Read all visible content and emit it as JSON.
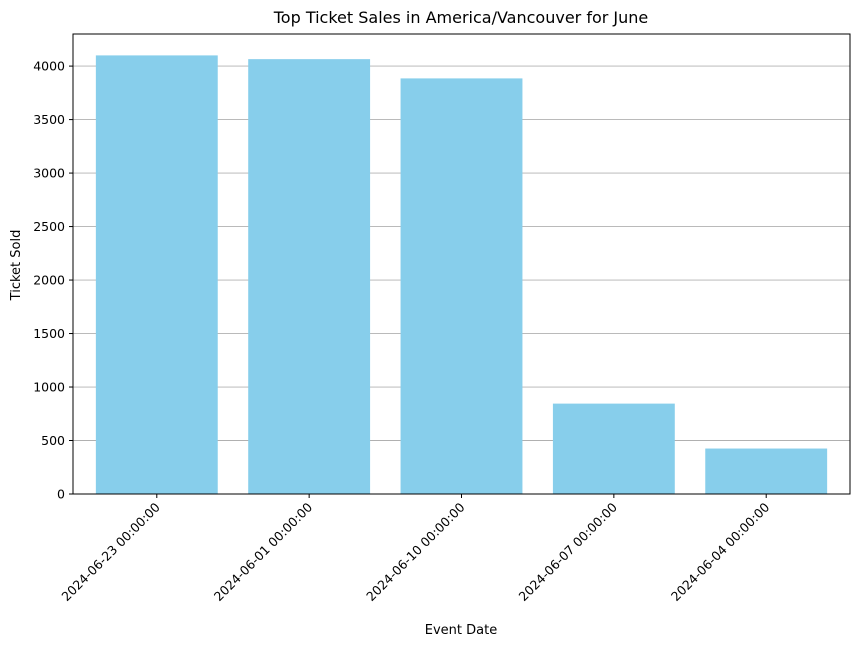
{
  "chart_data": {
    "type": "bar",
    "title": "Top Ticket Sales in America/Vancouver for June",
    "xlabel": "Event Date",
    "ylabel": "Ticket Sold",
    "categories": [
      "2024-06-23 00:00:00",
      "2024-06-01 00:00:00",
      "2024-06-10 00:00:00",
      "2024-06-07 00:00:00",
      "2024-06-04 00:00:00"
    ],
    "values": [
      4100,
      4065,
      3885,
      845,
      425
    ],
    "ylim": [
      0,
      4300
    ],
    "yticks": [
      0,
      500,
      1000,
      1500,
      2000,
      2500,
      3000,
      3500,
      4000
    ],
    "ytick_labels": [
      "0",
      "500",
      "1000",
      "1500",
      "2000",
      "2500",
      "3000",
      "3500",
      "4000"
    ],
    "bar_color": "#87ceeb",
    "grid": "y-axis",
    "xtick_rotation": 45
  }
}
